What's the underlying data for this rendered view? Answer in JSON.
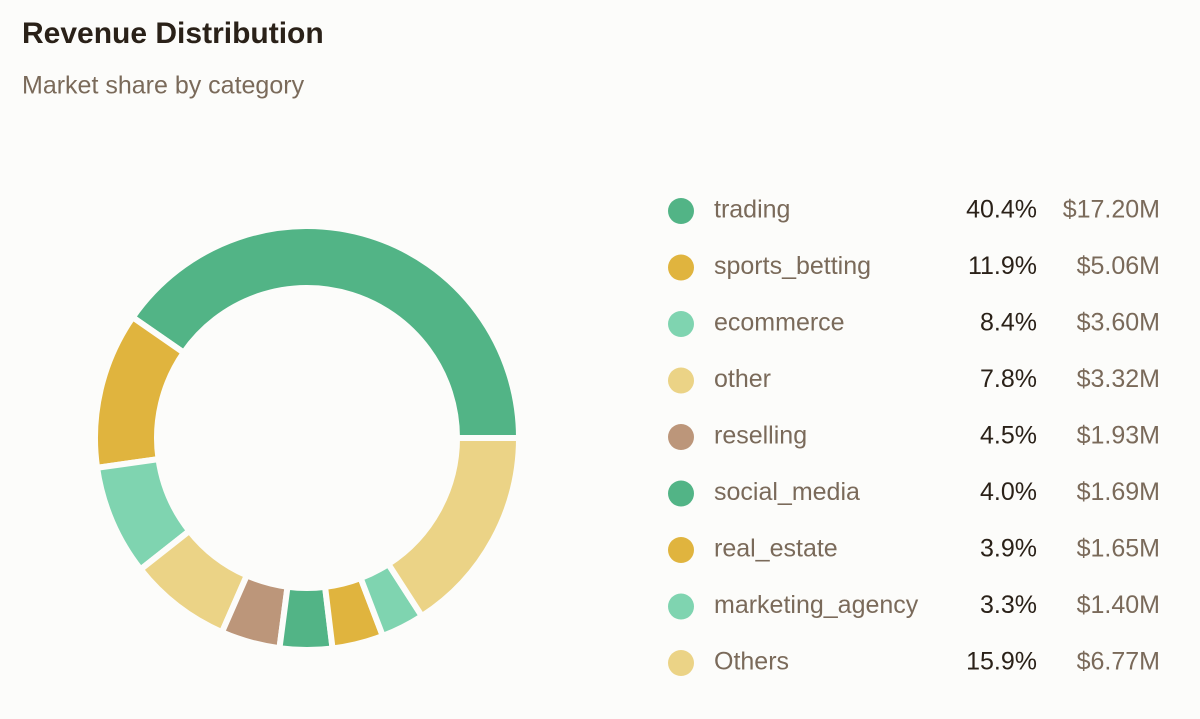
{
  "chart_data": {
    "type": "pie",
    "title": "Revenue Distribution",
    "subtitle": "Market share by category",
    "categories": [
      "trading",
      "sports_betting",
      "ecommerce",
      "other",
      "reselling",
      "social_media",
      "real_estate",
      "marketing_agency",
      "Others"
    ],
    "values": [
      40.4,
      11.9,
      8.4,
      7.8,
      4.5,
      4.0,
      3.9,
      3.3,
      15.9
    ],
    "value_labels": [
      "40.4%",
      "11.9%",
      "8.4%",
      "7.8%",
      "4.5%",
      "4.0%",
      "3.9%",
      "3.3%",
      "15.9%"
    ],
    "revenue": [
      17200000,
      5060000,
      3600000,
      3320000,
      1930000,
      1690000,
      1650000,
      1400000,
      6770000
    ],
    "revenue_labels": [
      "$17.20M",
      "$5.06M",
      "$3.60M",
      "$3.32M",
      "$1.93M",
      "$1.69M",
      "$1.65M",
      "$1.40M",
      "$6.77M"
    ],
    "colors": [
      "#52b486",
      "#e0b43e",
      "#7fd4b0",
      "#ebd386",
      "#bc967a",
      "#52b486",
      "#e0b43e",
      "#7fd4b0",
      "#ebd386"
    ]
  }
}
